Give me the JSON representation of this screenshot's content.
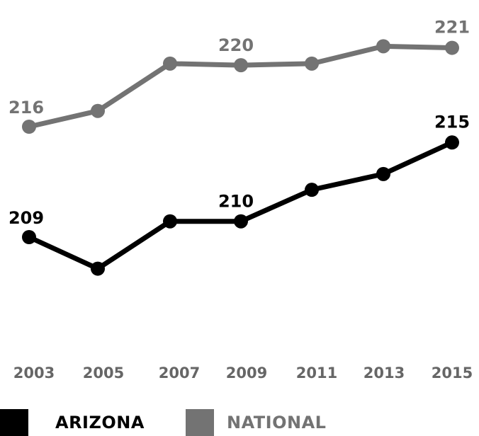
{
  "chart_data": {
    "type": "line",
    "x": [
      "2003",
      "2005",
      "2007",
      "2009",
      "2011",
      "2013",
      "2015"
    ],
    "series": [
      {
        "name": "NATIONAL",
        "color": "#737373",
        "values": [
          216,
          217,
          220,
          219.9,
          220,
          221.1,
          221
        ],
        "labels": {
          "0": "216",
          "3": "220",
          "6": "221"
        }
      },
      {
        "name": "ARIZONA",
        "color": "#000000",
        "values": [
          209,
          207,
          210,
          210,
          212,
          213,
          215
        ],
        "labels": {
          "0": "209",
          "3": "210",
          "6": "215"
        }
      }
    ],
    "legend": "bottom-left",
    "grid": false
  }
}
